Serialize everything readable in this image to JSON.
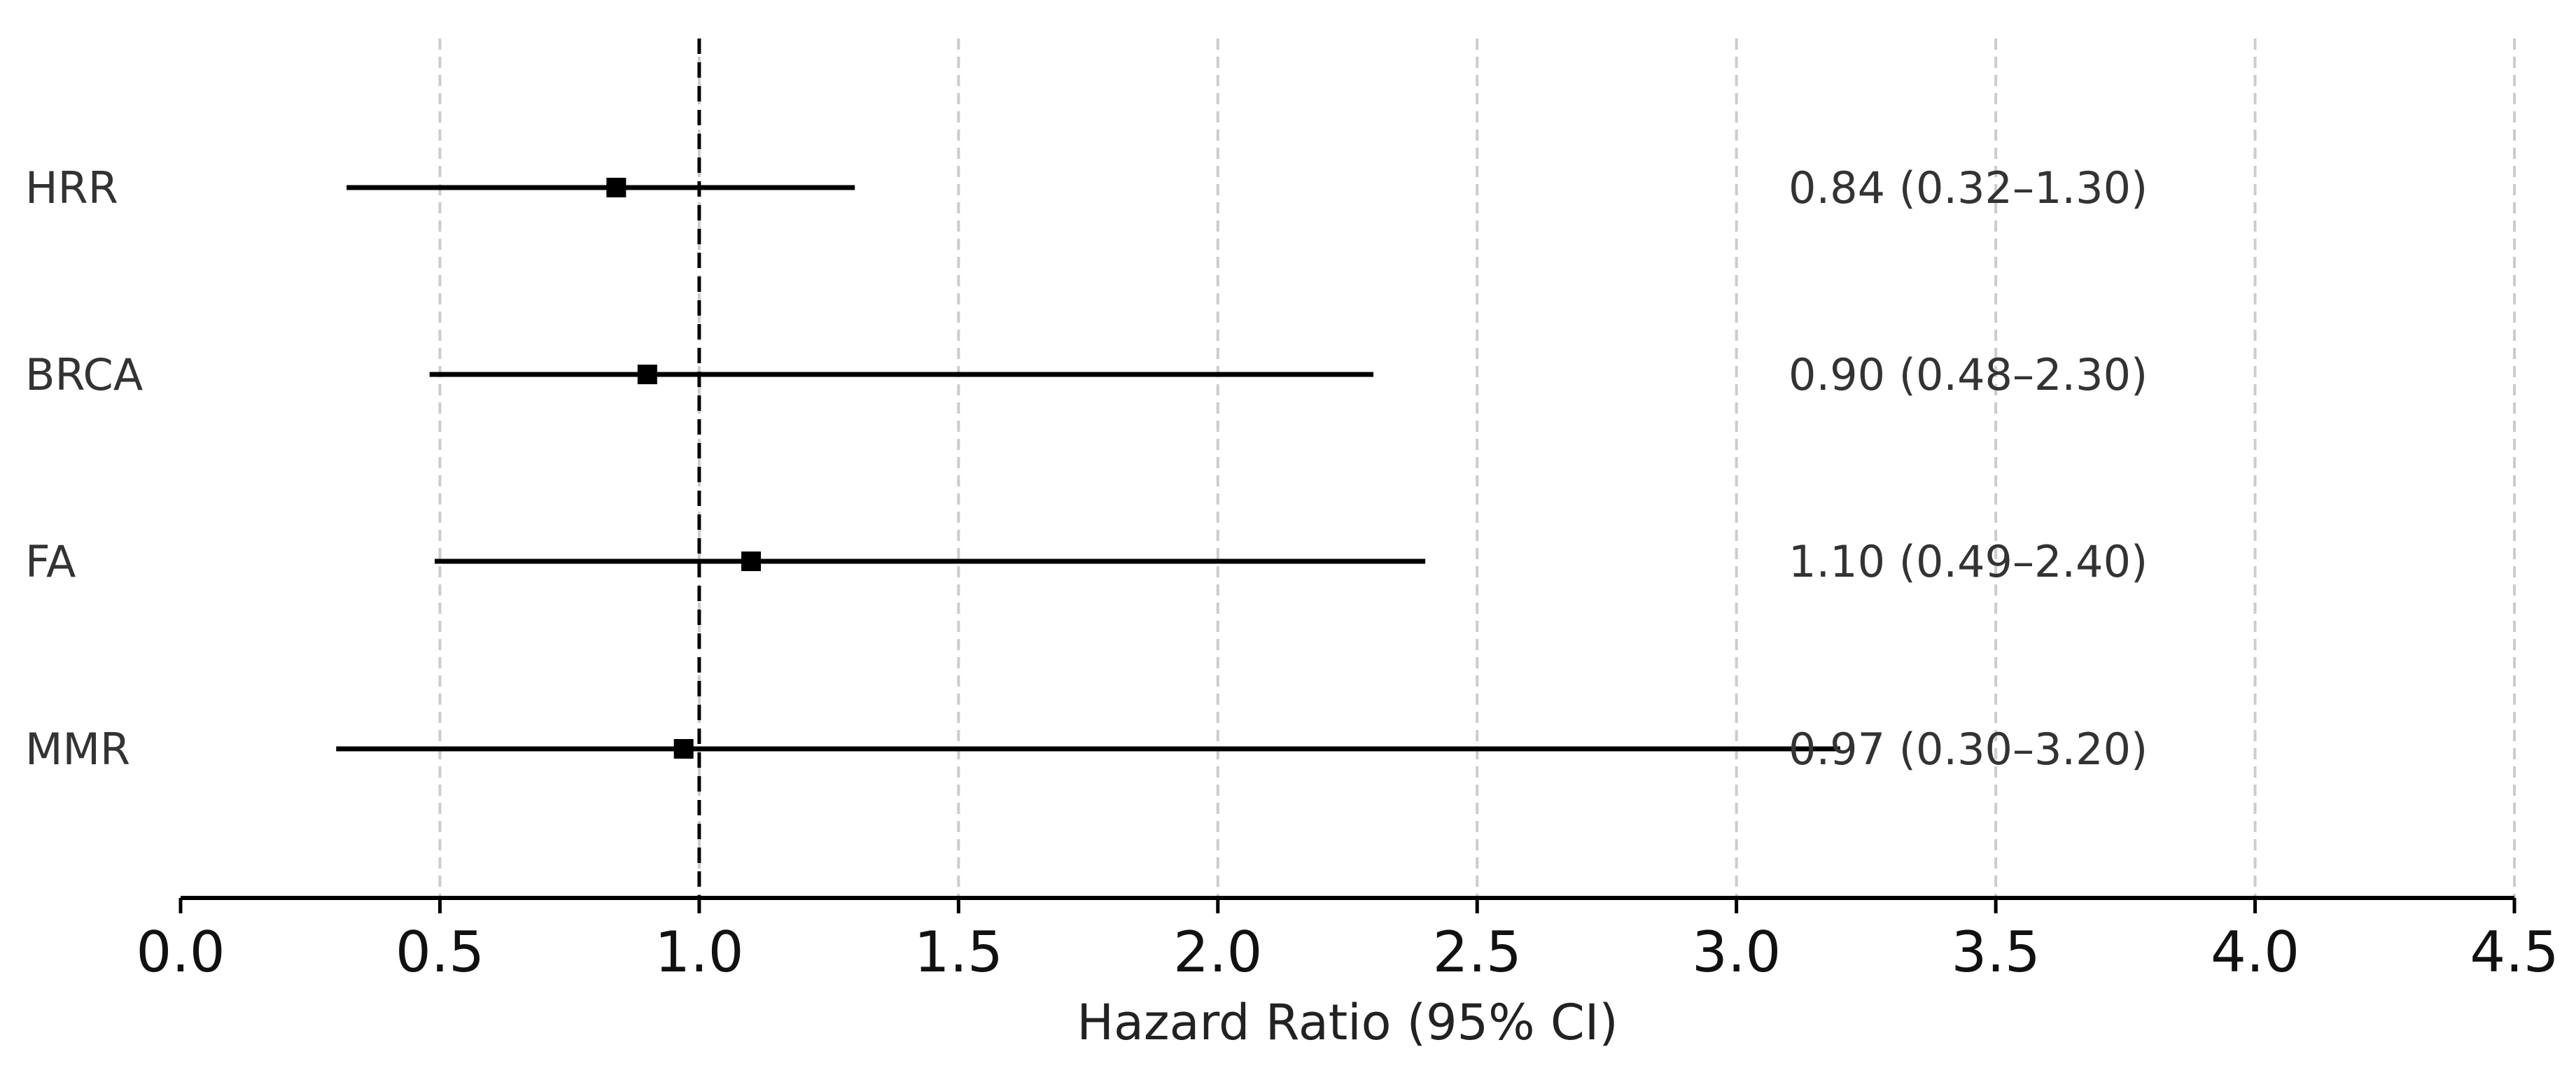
{
  "chart_data": {
    "type": "forest",
    "title": "",
    "xlabel": "Hazard Ratio (95% CI)",
    "ylabel": "",
    "xlim": [
      0.0,
      4.5
    ],
    "xticks": [
      0.0,
      0.5,
      1.0,
      1.5,
      2.0,
      2.5,
      3.0,
      3.5,
      4.0,
      4.5
    ],
    "xtick_labels": [
      "0.0",
      "0.5",
      "1.0",
      "1.5",
      "2.0",
      "2.5",
      "3.0",
      "3.5",
      "4.0",
      "4.5"
    ],
    "grid": "vertical dashed",
    "reference_line": 1.0,
    "series": [
      {
        "label": "HRR",
        "estimate": 0.84,
        "ci_low": 0.32,
        "ci_high": 1.3,
        "text": "0.84 (0.32–1.30)"
      },
      {
        "label": "BRCA",
        "estimate": 0.9,
        "ci_low": 0.48,
        "ci_high": 2.3,
        "text": "0.90 (0.48–2.30)"
      },
      {
        "label": "FA",
        "estimate": 1.1,
        "ci_low": 0.49,
        "ci_high": 2.4,
        "text": "1.10 (0.49–2.40)"
      },
      {
        "label": "MMR",
        "estimate": 0.97,
        "ci_low": 0.3,
        "ci_high": 3.2,
        "text": "0.97 (0.30–3.20)"
      }
    ],
    "colors": {
      "marker": "#000000",
      "line": "#000000",
      "grid": "#cccccc",
      "text": "#333333"
    }
  }
}
